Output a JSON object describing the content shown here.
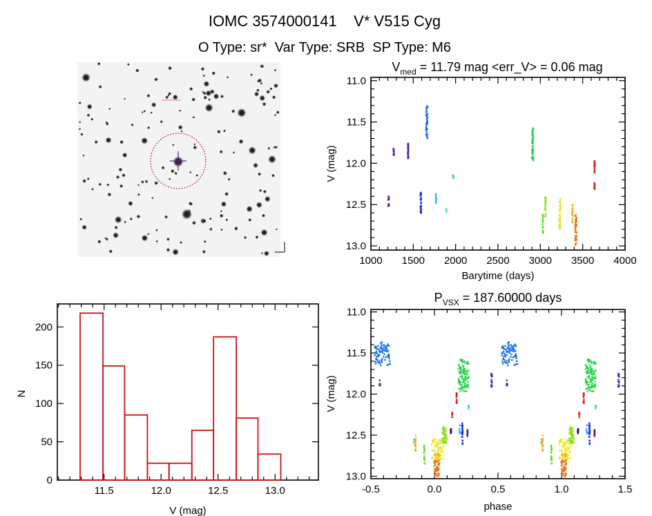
{
  "header": {
    "title": "IOMC 3574000141    V* V515 Cyg",
    "subtitle": "O Type: sr*  Var Type: SRB  SP Type: M6"
  },
  "finding_chart": {
    "circle_color": "#cc0000",
    "crosshair_color": "#6a1a8a"
  },
  "chart_data": [
    {
      "id": "light-curve",
      "type": "scatter",
      "title": {
        "main": "V",
        "sub": "med",
        "rest": " = 11.79 mag <err_V> = 0.06 mag"
      },
      "xlabel": "Barytime (days)",
      "ylabel": "V (mag)",
      "xlim": [
        1000,
        4000
      ],
      "ylim": [
        13.05,
        10.96
      ],
      "y_inverted": true,
      "xticks": [
        "1000",
        "1500",
        "2000",
        "2500",
        "3000",
        "3500",
        "4000"
      ],
      "yticks": [
        "11.0",
        "11.5",
        "12.0",
        "12.5",
        "13.0"
      ],
      "grid": false,
      "clusters": [
        {
          "t": 1210,
          "v": [
            12.4,
            12.52
          ],
          "color": "#5a1a7a"
        },
        {
          "t": 1270,
          "v": [
            11.8,
            11.9
          ],
          "color": "#5b1fa0"
        },
        {
          "t": 1440,
          "v": [
            11.75,
            11.95
          ],
          "color": "#3a2aa8"
        },
        {
          "t": 1590,
          "v": [
            12.35,
            12.62
          ],
          "color": "#1a2fd0"
        },
        {
          "t": 1660,
          "v": [
            11.3,
            11.7
          ],
          "color": "#1a70e8"
        },
        {
          "t": 1770,
          "v": [
            12.37,
            12.5
          ],
          "color": "#30c0e8"
        },
        {
          "t": 1890,
          "v": [
            12.55,
            12.6
          ],
          "color": "#40e0d0"
        },
        {
          "t": 1970,
          "v": [
            12.14,
            12.18
          ],
          "color": "#30e0a0"
        },
        {
          "t": 2910,
          "v": [
            11.57,
            11.97
          ],
          "color": "#30d050"
        },
        {
          "t": 3030,
          "v": [
            12.62,
            12.85
          ],
          "color": "#60e030"
        },
        {
          "t": 3060,
          "v": [
            12.4,
            12.65
          ],
          "color": "#90e020"
        },
        {
          "t": 3230,
          "v": [
            12.43,
            12.8
          ],
          "color": "#e8e820"
        },
        {
          "t": 3380,
          "v": [
            12.5,
            12.72
          ],
          "color": "#f0b020"
        },
        {
          "t": 3420,
          "v": [
            12.62,
            13.0
          ],
          "color": "#e87820"
        },
        {
          "t": 3640,
          "v": [
            11.95,
            12.12
          ],
          "color": "#d03020"
        },
        {
          "t": 3640,
          "v": [
            12.22,
            12.32
          ],
          "color": "#d03020"
        }
      ]
    },
    {
      "id": "histogram",
      "type": "bar",
      "title": "",
      "xlabel": "V (mag)",
      "ylabel": "N",
      "xlim": [
        11.09,
        13.38
      ],
      "ylim": [
        0,
        230
      ],
      "xticks": [
        "11.5",
        "12.0",
        "12.5",
        "13.0"
      ],
      "yticks": [
        "0",
        "50",
        "100",
        "150",
        "200"
      ],
      "bin_edges": [
        11.29,
        11.49,
        11.68,
        11.88,
        12.07,
        12.27,
        12.46,
        12.66,
        12.85,
        13.05
      ],
      "values": [
        218,
        149,
        85,
        22,
        22,
        65,
        187,
        81,
        34
      ],
      "bar_color": "#cc1111",
      "grid": false
    },
    {
      "id": "phased-light-curve",
      "type": "scatter",
      "title": {
        "main": "P",
        "sub": "VSX",
        "rest": " = 187.60000 days"
      },
      "xlabel": "phase",
      "ylabel": "V (mag)",
      "xlim": [
        -0.5,
        1.5
      ],
      "ylim": [
        13.03,
        10.97
      ],
      "y_inverted": true,
      "xticks": [
        "-0.5",
        "0.0",
        "0.5",
        "1.0",
        "1.5"
      ],
      "yticks": [
        "11.0",
        "11.5",
        "12.0",
        "12.5",
        "13.0"
      ],
      "grid": false,
      "period_days": 187.6,
      "clusters": [
        {
          "phase": [
            0.53,
            0.65
          ],
          "v": [
            11.35,
            11.65
          ],
          "color": "#1a70e8"
        },
        {
          "phase": [
            0.57,
            0.57
          ],
          "v": [
            11.83,
            11.9
          ],
          "color": "#5b1fa0"
        },
        {
          "phase": [
            0.45,
            0.45
          ],
          "v": [
            11.75,
            11.92
          ],
          "color": "#3a2aa8"
        },
        {
          "phase": [
            0.84,
            0.84
          ],
          "v": [
            12.55,
            12.6
          ],
          "color": "#40e0d0"
        },
        {
          "phase": [
            0.85,
            0.85
          ],
          "v": [
            12.5,
            12.72
          ],
          "color": "#f0b020"
        },
        {
          "phase": [
            0.92,
            0.92
          ],
          "v": [
            12.62,
            12.85
          ],
          "color": "#60e030"
        },
        {
          "phase": [
            0.0,
            0.04
          ],
          "v": [
            12.72,
            13.0
          ],
          "color": "#e87820"
        },
        {
          "phase": [
            -0.02,
            0.07
          ],
          "v": [
            12.55,
            12.8
          ],
          "color": "#e8e820"
        },
        {
          "phase": [
            0.06,
            0.1
          ],
          "v": [
            12.4,
            12.6
          ],
          "color": "#90e020"
        },
        {
          "phase": [
            0.13,
            0.13
          ],
          "v": [
            12.42,
            12.5
          ],
          "color": "#3a0a4a"
        },
        {
          "phase": [
            0.14,
            0.14
          ],
          "v": [
            12.22,
            12.32
          ],
          "color": "#d03020"
        },
        {
          "phase": [
            0.175,
            0.175
          ],
          "v": [
            11.95,
            12.12
          ],
          "color": "#d03020"
        },
        {
          "phase": [
            0.19,
            0.27
          ],
          "v": [
            11.57,
            11.97
          ],
          "color": "#30d050"
        },
        {
          "phase": [
            0.27,
            0.27
          ],
          "v": [
            12.14,
            12.18
          ],
          "color": "#30e0a0"
        },
        {
          "phase": [
            0.2,
            0.2
          ],
          "v": [
            12.37,
            12.5
          ],
          "color": "#30c0e8"
        },
        {
          "phase": [
            0.22,
            0.22
          ],
          "v": [
            12.35,
            12.62
          ],
          "color": "#1a2fd0"
        },
        {
          "phase": [
            0.26,
            0.26
          ],
          "v": [
            12.4,
            12.52
          ],
          "color": "#5a1a7a"
        }
      ]
    }
  ]
}
